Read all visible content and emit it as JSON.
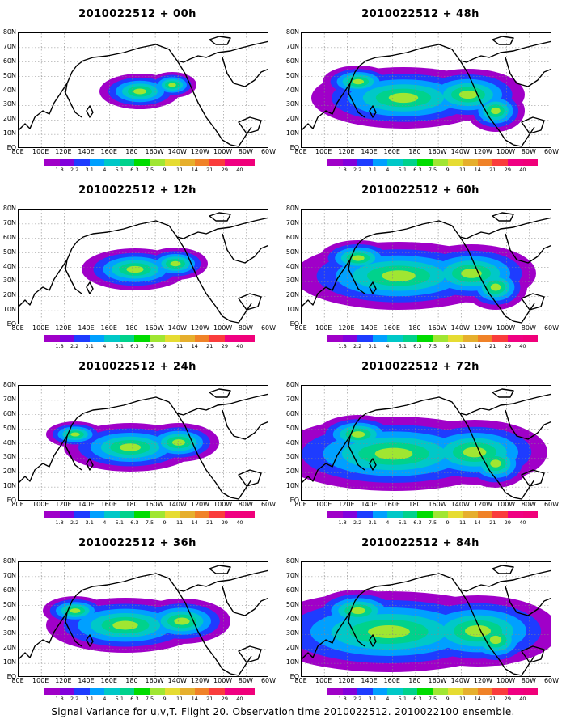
{
  "panels": [
    {
      "title": "2010022512 + 00h",
      "spread": 0
    },
    {
      "title": "2010022512 + 12h",
      "spread": 1
    },
    {
      "title": "2010022512 + 24h",
      "spread": 2
    },
    {
      "title": "2010022512 + 36h",
      "spread": 3
    },
    {
      "title": "2010022512 + 48h",
      "spread": 4
    },
    {
      "title": "2010022512 + 60h",
      "spread": 5
    },
    {
      "title": "2010022512 + 72h",
      "spread": 6
    },
    {
      "title": "2010022512 + 84h",
      "spread": 7
    }
  ],
  "lat_labels": [
    "80N",
    "70N",
    "60N",
    "50N",
    "40N",
    "30N",
    "20N",
    "10N",
    "EQ"
  ],
  "lon_labels": [
    "80E",
    "100E",
    "120E",
    "140E",
    "160E",
    "180",
    "160W",
    "140W",
    "120W",
    "100W",
    "80W",
    "60W"
  ],
  "colorbar": {
    "labels": [
      "1.8",
      "2.2",
      "3.1",
      "4",
      "5.1",
      "6.3",
      "7.5",
      "9",
      "11",
      "14",
      "21",
      "29",
      "40"
    ],
    "colors": [
      "#a000c8",
      "#8200dc",
      "#1e3cff",
      "#00a0ff",
      "#00c8c8",
      "#00d28c",
      "#00dc00",
      "#a0e632",
      "#e6dc32",
      "#e6af2d",
      "#f08228",
      "#fa3c3c",
      "#f00082"
    ]
  },
  "caption": "Signal Variance for u,v,T. Flight 20. Observation time 2010022512. 2010022100 ensemble."
}
